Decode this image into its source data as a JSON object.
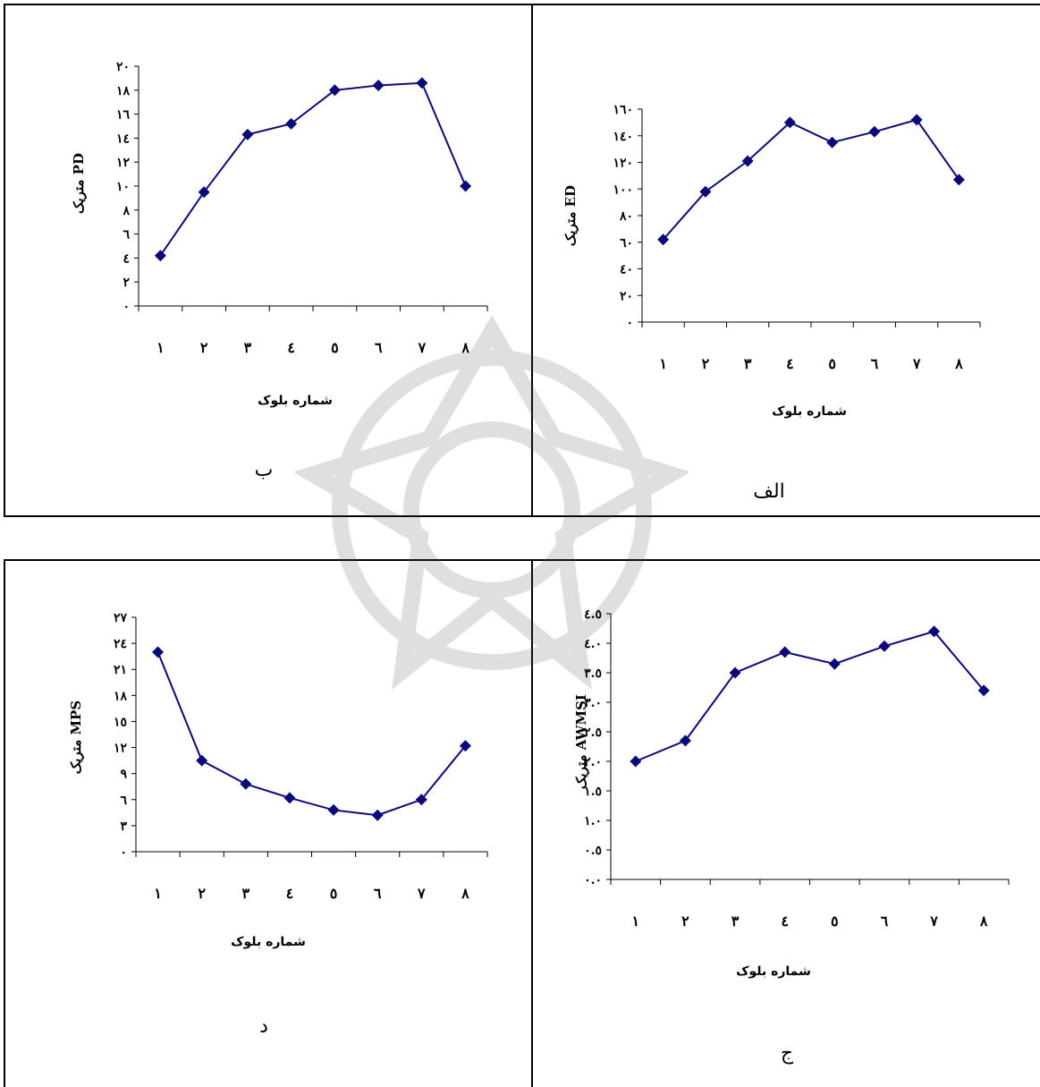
{
  "colors": {
    "line": "#0a0a7a",
    "axis": "#000000"
  },
  "chart_data": [
    {
      "id": "pd",
      "panel_label": "ب",
      "type": "line",
      "xlabel": "شماره بلوک",
      "ylabel": "متریک PD",
      "categories": [
        "١",
        "٢",
        "٣",
        "٤",
        "٥",
        "٦",
        "٧",
        "٨"
      ],
      "values": [
        4.2,
        9.5,
        14.3,
        15.2,
        18.0,
        18.4,
        18.6,
        10.0
      ],
      "ylim": [
        0,
        20
      ],
      "yticks": [
        "٠",
        "٢",
        "٤",
        "٦",
        "٨",
        "١٠",
        "١٢",
        "١٤",
        "١٦",
        "١٨",
        "٢٠"
      ],
      "ytick_values": [
        0,
        2,
        4,
        6,
        8,
        10,
        12,
        14,
        16,
        18,
        20
      ]
    },
    {
      "id": "ed",
      "panel_label": "الف",
      "type": "line",
      "xlabel": "شماره بلوک",
      "ylabel": "متریک ED",
      "categories": [
        "١",
        "٢",
        "٣",
        "٤",
        "٥",
        "٦",
        "٧",
        "٨"
      ],
      "values": [
        62,
        98,
        121,
        150,
        135,
        143,
        152,
        107
      ],
      "ylim": [
        0,
        160
      ],
      "yticks": [
        "٠",
        "٢٠",
        "٤٠",
        "٦٠",
        "٨٠",
        "١٠٠",
        "١٢٠",
        "١٤٠",
        "١٦٠"
      ],
      "ytick_values": [
        0,
        20,
        40,
        60,
        80,
        100,
        120,
        140,
        160
      ]
    },
    {
      "id": "mps",
      "panel_label": "د",
      "type": "line",
      "xlabel": "شماره بلوک",
      "ylabel": "متریک MPS",
      "categories": [
        "١",
        "٢",
        "٣",
        "٤",
        "٥",
        "٦",
        "٧",
        "٨"
      ],
      "values": [
        23.0,
        10.5,
        7.8,
        6.2,
        4.8,
        4.2,
        6.0,
        12.2
      ],
      "ylim": [
        0,
        27
      ],
      "yticks": [
        "٠",
        "٣",
        "٦",
        "٩",
        "١٢",
        "١٥",
        "١٨",
        "٢١",
        "٢٤",
        "٢٧"
      ],
      "ytick_values": [
        0,
        3,
        6,
        9,
        12,
        15,
        18,
        21,
        24,
        27
      ]
    },
    {
      "id": "awmsi",
      "panel_label": "ج",
      "type": "line",
      "xlabel": "شماره بلوک",
      "ylabel": "متریک AWMSI",
      "categories": [
        "١",
        "٢",
        "٣",
        "٤",
        "٥",
        "٦",
        "٧",
        "٨"
      ],
      "values": [
        2.0,
        2.35,
        3.5,
        3.85,
        3.65,
        3.95,
        4.2,
        3.2
      ],
      "ylim": [
        0,
        4.5
      ],
      "yticks": [
        "٠.٠",
        "٠.٥",
        "١.٠",
        "١.٥",
        "٢.٠",
        "٢.٥",
        "٣.٠",
        "٣.٥",
        "٤.٠",
        "٤.٥"
      ],
      "ytick_values": [
        0,
        0.5,
        1,
        1.5,
        2,
        2.5,
        3,
        3.5,
        4,
        4.5
      ]
    }
  ]
}
